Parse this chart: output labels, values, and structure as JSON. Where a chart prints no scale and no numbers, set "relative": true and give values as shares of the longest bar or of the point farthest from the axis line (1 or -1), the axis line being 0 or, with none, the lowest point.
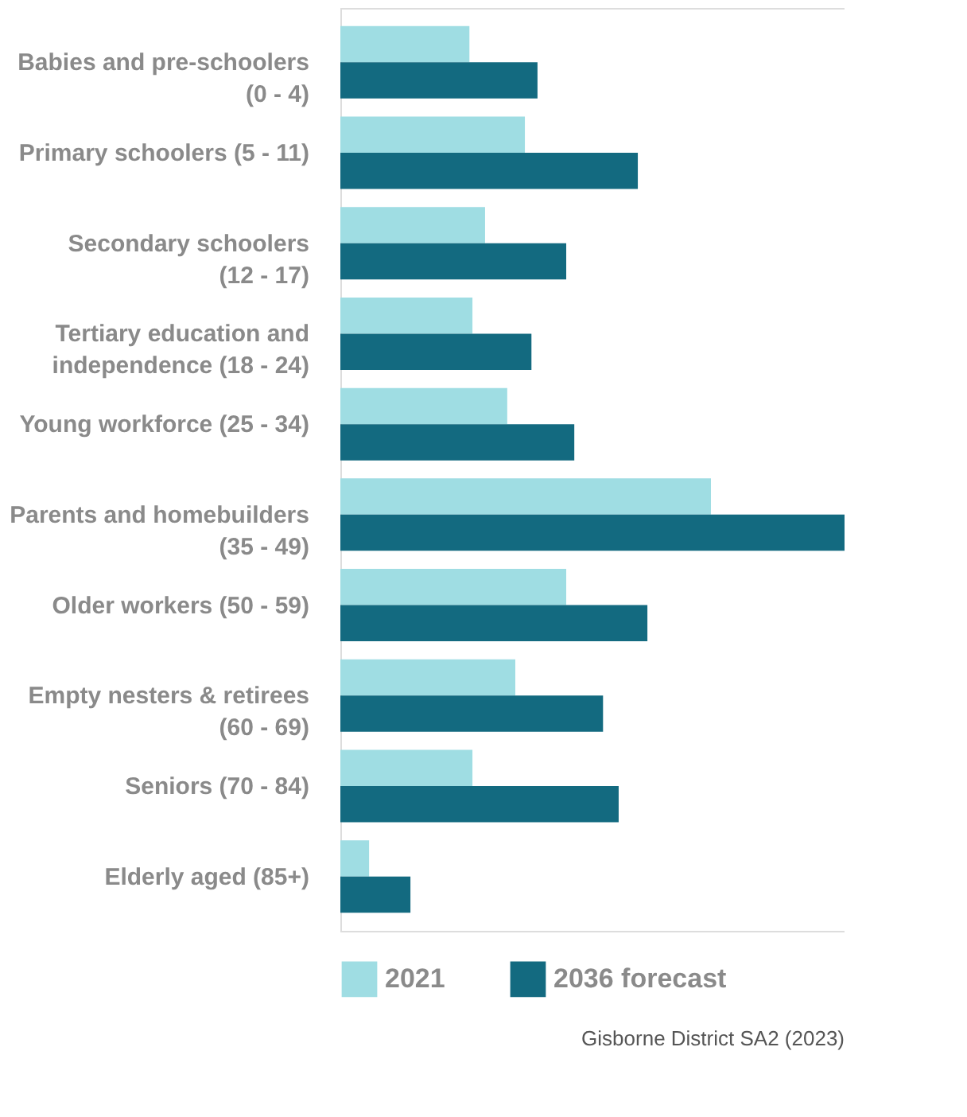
{
  "chart_data": {
    "type": "bar",
    "orientation": "horizontal",
    "relative": true,
    "categories": [
      "Babies and pre-schoolers\n(0 - 4)",
      "Primary schoolers (5 - 11)",
      "Secondary schoolers\n(12 - 17)",
      "Tertiary education and\nindependence (18 - 24)",
      "Young workforce (25 - 34)",
      "Parents and homebuilders\n(35 - 49)",
      "Older workers (50 - 59)",
      "Empty nesters & retirees\n(60 - 69)",
      "Seniors (70 - 84)",
      "Elderly aged (85+)"
    ],
    "series": [
      {
        "name": "2021",
        "color": "#9fdde3",
        "values": [
          0.256,
          0.366,
          0.287,
          0.262,
          0.331,
          0.735,
          0.448,
          0.347,
          0.262,
          0.057
        ]
      },
      {
        "name": "2036 forecast",
        "color": "#136a80",
        "values": [
          0.391,
          0.59,
          0.448,
          0.379,
          0.464,
          1,
          0.609,
          0.521,
          0.552,
          0.139
        ]
      }
    ],
    "legend": "bottom",
    "grid": false,
    "annotations": [
      "Gisborne District SA2 (2023)"
    ]
  }
}
